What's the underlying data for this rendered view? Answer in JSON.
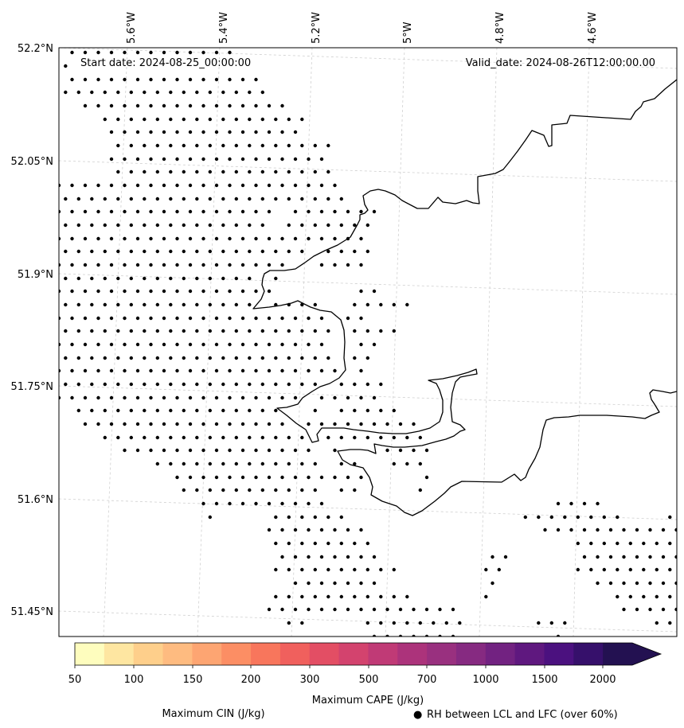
{
  "map": {
    "start_date_text": "Start date: 2024-08-25_00:00:00",
    "valid_date_text": "Valid_date: 2024-08-26T12:00:00.00",
    "lon_labels": [
      "5.6°W",
      "5.4°W",
      "5.2°W",
      "5°W",
      "4.8°W",
      "4.6°W"
    ],
    "lat_labels": [
      "52.2°N",
      "52.05°N",
      "51.9°N",
      "51.75°N",
      "51.6°N",
      "51.45°N"
    ],
    "stipple_meaning": "RH between LCL and LFC (over 60%)"
  },
  "colorbar": {
    "label": "Maximum CAPE (J/kg)",
    "tick_labels": [
      "50",
      "100",
      "150",
      "200",
      "300",
      "500",
      "700",
      "1000",
      "1500",
      "2000"
    ],
    "colors": [
      "#fefdbe",
      "#fee6a1",
      "#fecf8b",
      "#febb80",
      "#fda572",
      "#fc8e64",
      "#f8765c",
      "#f0605d",
      "#e34e64",
      "#d3436e",
      "#c03a76",
      "#ac337b",
      "#99307f",
      "#862a81",
      "#722281",
      "#5f187f",
      "#4b117f",
      "#36106b",
      "#231151"
    ],
    "extend_color": "#231151"
  },
  "legend": {
    "cin_label": "Maximum CIN (J/kg)",
    "cin_color": "#ff0000",
    "rh_marker": "●",
    "rh_label": "RH between LCL and LFC (over 60%)"
  }
}
